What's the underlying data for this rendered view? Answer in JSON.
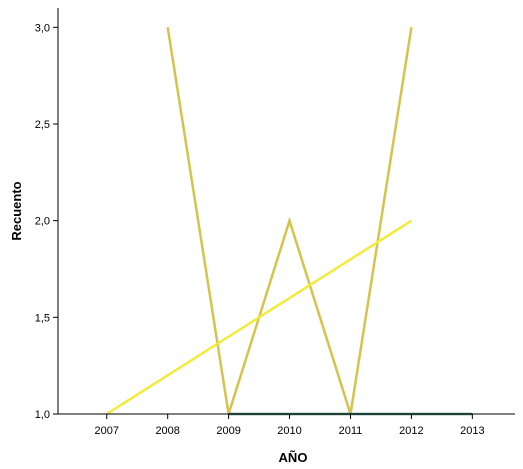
{
  "chart_data": {
    "type": "line",
    "title": "",
    "xlabel": "AÑO",
    "ylabel": "Recuento",
    "x": [
      2007,
      2008,
      2009,
      2010,
      2011,
      2012,
      2013
    ],
    "x_tick_labels": [
      "2007",
      "2008",
      "2009",
      "2010",
      "2011",
      "2012",
      "2013"
    ],
    "xlim": [
      2006.2,
      2013.7
    ],
    "ylim": [
      1.0,
      3.1
    ],
    "y_ticks": [
      1.0,
      1.5,
      2.0,
      2.5,
      3.0
    ],
    "y_tick_labels": [
      "1,0",
      "1,5",
      "2,0",
      "2,5",
      "3,0"
    ],
    "grid": false,
    "series": [
      {
        "color": "#D4C44E",
        "x": [
          2008,
          2009,
          2010,
          2011,
          2012
        ],
        "y": [
          3.0,
          1.0,
          2.0,
          1.0,
          3.0
        ]
      },
      {
        "color": "#F2EB3A",
        "x": [
          2007,
          2012
        ],
        "y": [
          1.0,
          2.0
        ]
      },
      {
        "color": "#3F7F6F",
        "x": [
          2009,
          2013
        ],
        "y": [
          1.0,
          1.0
        ]
      }
    ]
  }
}
